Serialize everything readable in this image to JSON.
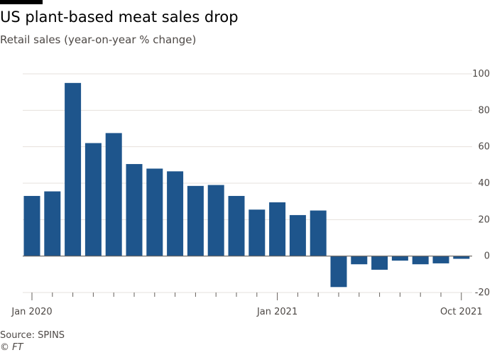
{
  "colors": {
    "bar": "#1e558c",
    "grid": "#e6e1dc",
    "zero_line": "#66605c",
    "axis": "#66605c",
    "text": "#4d4845",
    "title": "#000000"
  },
  "source": "Source: SPINS",
  "credit": "© FT",
  "chart_data": {
    "type": "bar",
    "title": "US plant-based meat sales drop",
    "subtitle": "Retail sales (year-on-year % change)",
    "xlabel": "",
    "ylabel": "",
    "categories": [
      "2020-01",
      "2020-02",
      "2020-03",
      "2020-04",
      "2020-05",
      "2020-06",
      "2020-07",
      "2020-08",
      "2020-09",
      "2020-10",
      "2020-11",
      "2020-12",
      "2021-01",
      "2021-02",
      "2021-03",
      "2021-04",
      "2021-05",
      "2021-06",
      "2021-07",
      "2021-08",
      "2021-09",
      "2021-10"
    ],
    "values": [
      33,
      35.5,
      95,
      62,
      67.5,
      50.5,
      48,
      46.5,
      38.5,
      39,
      33,
      25.5,
      29.5,
      22.5,
      25,
      -17,
      -4.5,
      -7.5,
      -2.5,
      -4.5,
      -4,
      -1.5
    ],
    "ylim": [
      -20,
      100
    ],
    "yticks": [
      "100",
      "80",
      "60",
      "40",
      "20",
      "0",
      "-20"
    ],
    "xticks": [
      {
        "index": 0,
        "label": "Jan 2020"
      },
      {
        "index": 12,
        "label": "Jan 2021"
      },
      {
        "index": 21,
        "label": "Oct 2021"
      }
    ],
    "y_axis_side": "right",
    "grid": true,
    "legend": "none"
  }
}
